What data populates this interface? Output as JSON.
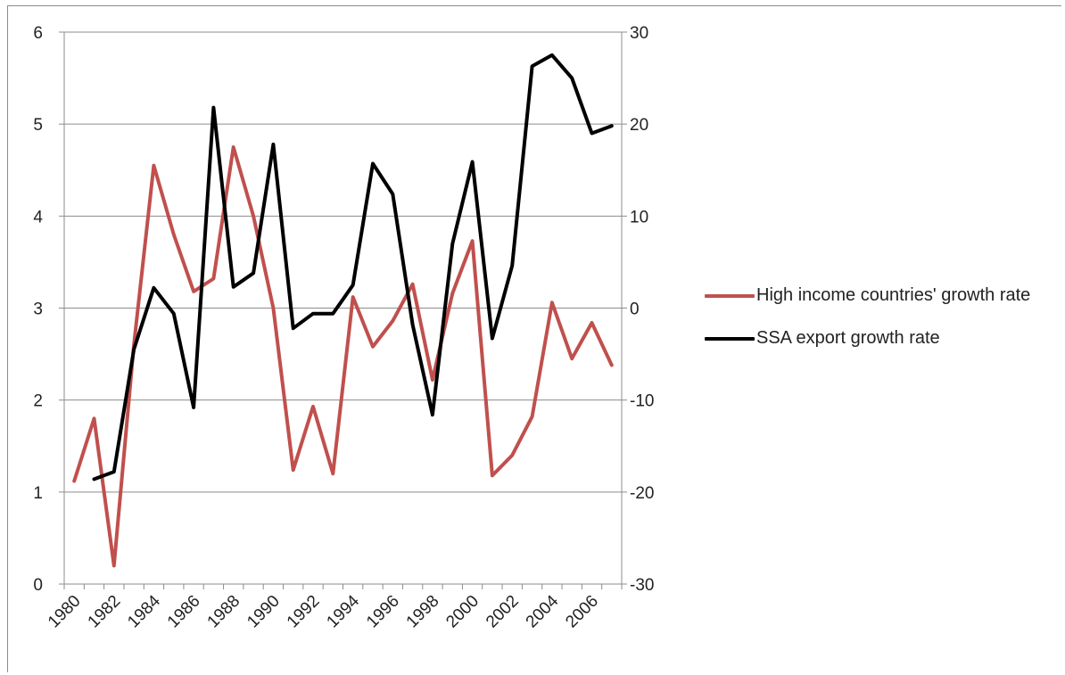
{
  "chart_data": {
    "type": "line",
    "x": [
      1980,
      1981,
      1982,
      1983,
      1984,
      1985,
      1986,
      1987,
      1988,
      1989,
      1990,
      1991,
      1992,
      1993,
      1994,
      1995,
      1996,
      1997,
      1998,
      1999,
      2000,
      2001,
      2002,
      2003,
      2004,
      2005,
      2006,
      2007
    ],
    "x_tick_labels": [
      "1980",
      "1982",
      "1984",
      "1986",
      "1988",
      "1990",
      "1992",
      "1994",
      "1996",
      "1998",
      "2000",
      "2002",
      "2004",
      "2006"
    ],
    "left_axis": {
      "ylim": [
        0,
        6
      ],
      "ticks": [
        "0",
        "1",
        "2",
        "3",
        "4",
        "5",
        "6"
      ]
    },
    "right_axis": {
      "ylim": [
        -30,
        30
      ],
      "ticks": [
        "-30",
        "-20",
        "-10",
        "0",
        "10",
        "20",
        "30"
      ]
    },
    "grid": true,
    "legend_position": "right",
    "series": [
      {
        "name": "High income countries'  growth rate",
        "axis": "left",
        "color": "#c0504d",
        "values": [
          1.12,
          1.8,
          0.2,
          2.6,
          4.55,
          3.8,
          3.18,
          3.32,
          4.75,
          4.0,
          3.0,
          1.24,
          1.93,
          1.2,
          3.12,
          2.58,
          2.86,
          3.26,
          2.22,
          3.16,
          3.73,
          1.18,
          1.4,
          1.82,
          3.06,
          2.45,
          2.84,
          2.38
        ]
      },
      {
        "name": "SSA export growth rate",
        "axis": "right",
        "color": "#000000",
        "values": [
          null,
          -18.6,
          -17.8,
          -4.5,
          2.2,
          -0.6,
          -10.8,
          21.8,
          2.3,
          3.8,
          17.8,
          -2.2,
          -0.6,
          -0.6,
          2.5,
          15.7,
          12.4,
          -1.8,
          -11.6,
          7.0,
          15.9,
          -3.3,
          4.6,
          26.3,
          27.5,
          25.0,
          19.0,
          19.8
        ]
      }
    ]
  }
}
